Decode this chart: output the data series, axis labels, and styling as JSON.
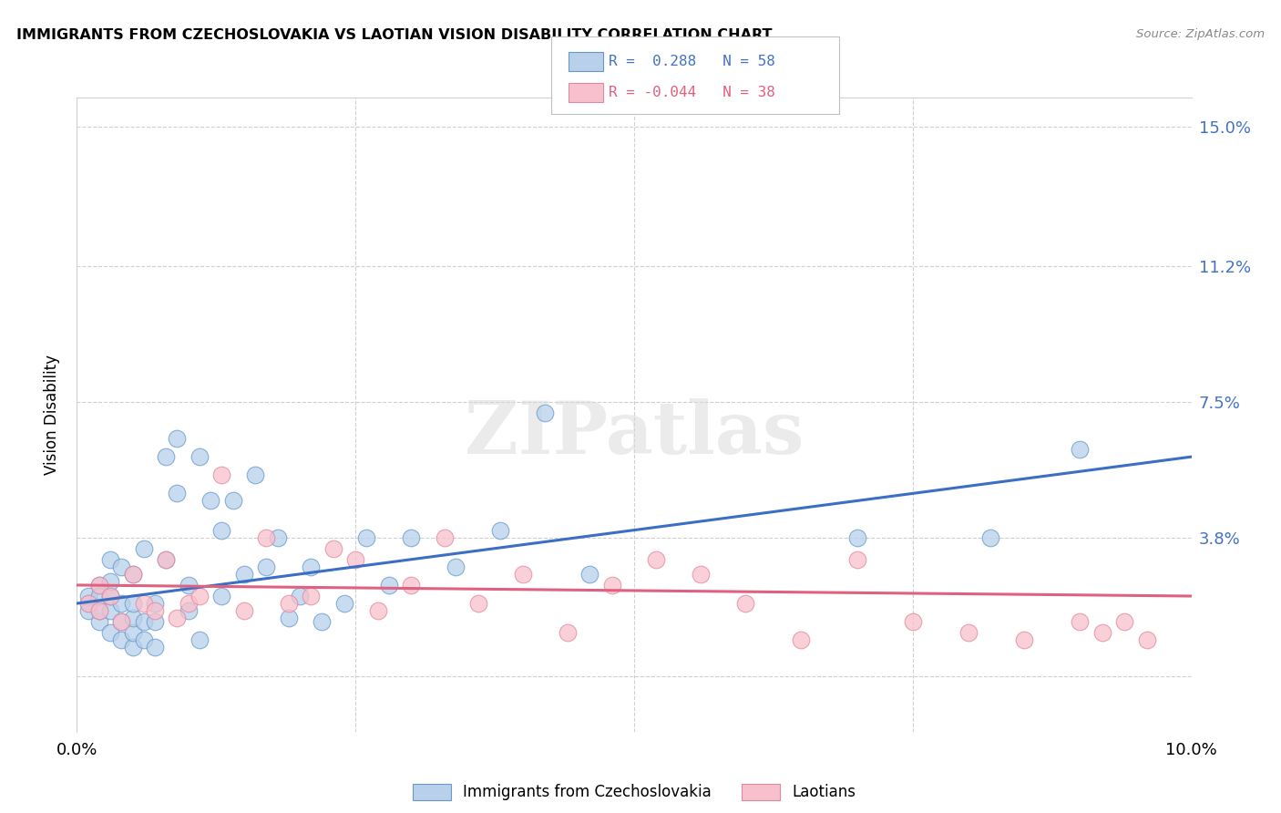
{
  "title": "IMMIGRANTS FROM CZECHOSLOVAKIA VS LAOTIAN VISION DISABILITY CORRELATION CHART",
  "source": "Source: ZipAtlas.com",
  "ylabel": "Vision Disability",
  "yticks": [
    0.0,
    0.038,
    0.075,
    0.112,
    0.15
  ],
  "ytick_labels": [
    "",
    "3.8%",
    "7.5%",
    "11.2%",
    "15.0%"
  ],
  "xlim": [
    0.0,
    0.1
  ],
  "ylim": [
    -0.015,
    0.158
  ],
  "series1_name": "Immigrants from Czechoslovakia",
  "series1_R": 0.288,
  "series1_N": 58,
  "series1_color": "#b8d0ea",
  "series1_edge_color": "#6699cc",
  "series1_line_color": "#3a6fc4",
  "series2_name": "Laotians",
  "series2_R": -0.044,
  "series2_N": 38,
  "series2_color": "#f8c0cc",
  "series2_edge_color": "#e088a0",
  "series2_line_color": "#e06080",
  "watermark": "ZIPatlas",
  "background_color": "#ffffff",
  "series1_x": [
    0.001,
    0.001,
    0.001,
    0.002,
    0.002,
    0.002,
    0.002,
    0.003,
    0.003,
    0.003,
    0.003,
    0.003,
    0.004,
    0.004,
    0.004,
    0.004,
    0.005,
    0.005,
    0.005,
    0.005,
    0.005,
    0.006,
    0.006,
    0.006,
    0.007,
    0.007,
    0.007,
    0.008,
    0.008,
    0.009,
    0.009,
    0.01,
    0.01,
    0.011,
    0.011,
    0.012,
    0.013,
    0.013,
    0.014,
    0.015,
    0.016,
    0.017,
    0.018,
    0.019,
    0.02,
    0.021,
    0.022,
    0.024,
    0.026,
    0.028,
    0.03,
    0.034,
    0.038,
    0.042,
    0.046,
    0.07,
    0.082,
    0.09
  ],
  "series1_y": [
    0.02,
    0.018,
    0.022,
    0.015,
    0.025,
    0.018,
    0.022,
    0.012,
    0.018,
    0.022,
    0.026,
    0.032,
    0.01,
    0.015,
    0.02,
    0.03,
    0.008,
    0.012,
    0.016,
    0.02,
    0.028,
    0.01,
    0.015,
    0.035,
    0.008,
    0.015,
    0.02,
    0.032,
    0.06,
    0.05,
    0.065,
    0.018,
    0.025,
    0.01,
    0.06,
    0.048,
    0.022,
    0.04,
    0.048,
    0.028,
    0.055,
    0.03,
    0.038,
    0.016,
    0.022,
    0.03,
    0.015,
    0.02,
    0.038,
    0.025,
    0.038,
    0.03,
    0.04,
    0.072,
    0.028,
    0.038,
    0.038,
    0.062
  ],
  "series2_x": [
    0.001,
    0.002,
    0.002,
    0.003,
    0.004,
    0.005,
    0.006,
    0.007,
    0.008,
    0.009,
    0.01,
    0.011,
    0.013,
    0.015,
    0.017,
    0.019,
    0.021,
    0.023,
    0.025,
    0.027,
    0.03,
    0.033,
    0.036,
    0.04,
    0.044,
    0.048,
    0.052,
    0.056,
    0.06,
    0.065,
    0.07,
    0.075,
    0.08,
    0.085,
    0.09,
    0.092,
    0.094,
    0.096
  ],
  "series2_y": [
    0.02,
    0.025,
    0.018,
    0.022,
    0.015,
    0.028,
    0.02,
    0.018,
    0.032,
    0.016,
    0.02,
    0.022,
    0.055,
    0.018,
    0.038,
    0.02,
    0.022,
    0.035,
    0.032,
    0.018,
    0.025,
    0.038,
    0.02,
    0.028,
    0.012,
    0.025,
    0.032,
    0.028,
    0.02,
    0.01,
    0.032,
    0.015,
    0.012,
    0.01,
    0.015,
    0.012,
    0.015,
    0.01
  ]
}
